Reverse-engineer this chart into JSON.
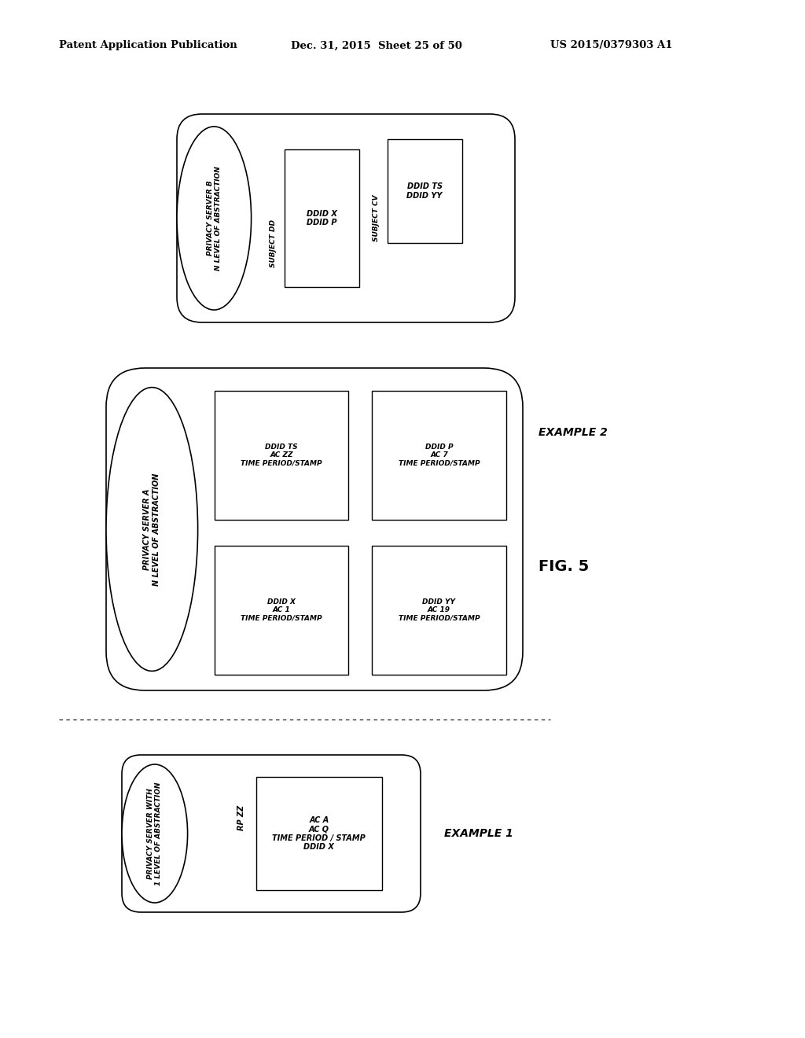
{
  "header_left": "Patent Application Publication",
  "header_center": "Dec. 31, 2015  Sheet 25 of 50",
  "header_right": "US 2015/0379303 A1",
  "fig_label": "FIG. 5",
  "bg_color": "#ffffff",
  "example1_label": "EXAMPLE 1",
  "example2_label": "EXAMPLE 2",
  "cylinder1_label": "PRIVACY SERVER WITH\n1 LEVEL OF ABSTRACTION",
  "cylinder1_outside_text": "RP ZZ",
  "cylinder1_box_text": "AC A\nAC Q\nTIME PERIOD / STAMP\nDDID X",
  "cylinder2_label": "PRIVACY SERVER A\nN LEVEL OF ABSTRACTION",
  "cylinder2_box1_text": "DDID X\nAC 1\nTIME PERIOD/STAMP",
  "cylinder2_box2_text": "DDID YY\nAC 19\nTIME PERIOD/STAMP",
  "cylinder2_box3_text": "DDID TS\nAC ZZ\nTIME PERIOD/STAMP",
  "cylinder2_box4_text": "DDID P\nAC 7\nTIME PERIOD/STAMP",
  "cylinder3_label": "PRIVACY SERVER B\nN LEVEL OF ABSTRACTION",
  "cylinder3_subject1": "SUBJECT DD",
  "cylinder3_box1_text": "DDID X\nDDID P",
  "cylinder3_subject2": "SUBJECT CV",
  "cylinder3_box2_text": "DDID TS\nDDID YY"
}
